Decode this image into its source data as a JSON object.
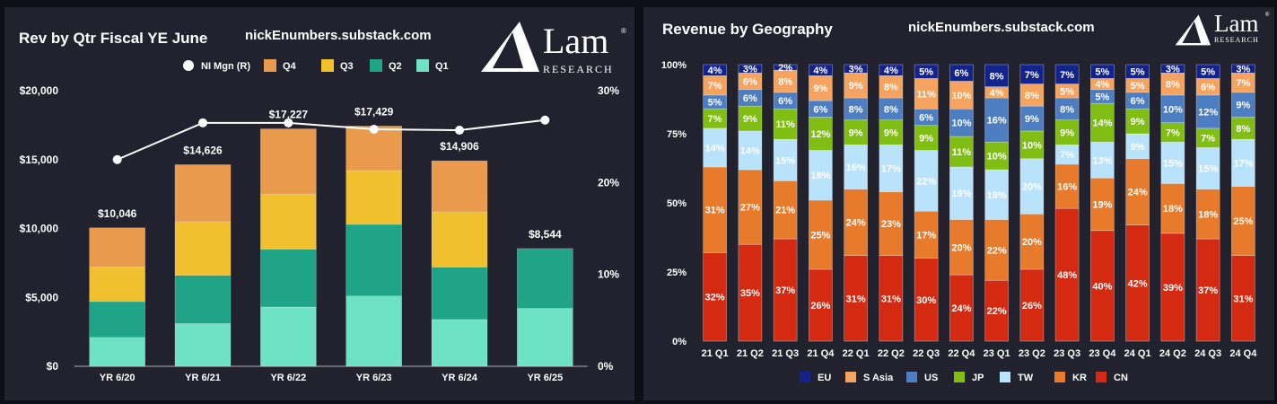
{
  "brand": {
    "name": "Lam",
    "sub": "RESEARCH",
    "reg": "®"
  },
  "site": "nickEnumbers.substack.com",
  "chart_data": [
    {
      "type": "bar",
      "stacked": true,
      "title": "Rev by Qtr Fiscal YE June",
      "categories": [
        "YR 6/20",
        "YR 6/21",
        "YR 6/22",
        "YR 6/23",
        "YR 6/24",
        "YR 6/25"
      ],
      "series": [
        {
          "name": "Q1",
          "color": "#6ee2c4",
          "values": [
            2100,
            3100,
            4300,
            5100,
            3400,
            4200
          ]
        },
        {
          "name": "Q2",
          "color": "#1fa487",
          "values": [
            2600,
            3500,
            4200,
            5200,
            3800,
            4344
          ]
        },
        {
          "name": "Q3",
          "color": "#f0c02f",
          "values": [
            2500,
            3900,
            4000,
            3900,
            4000,
            0
          ]
        },
        {
          "name": "Q4",
          "color": "#e99a4c",
          "values": [
            2846,
            4126,
            4727,
            3229,
            3706,
            0
          ]
        }
      ],
      "totals": [
        "$10,046",
        "$14,626",
        "$17,227",
        "$17,429",
        "$14,906",
        "$8,544"
      ],
      "line": {
        "name": "NI Mgn (R)",
        "color": "#ffffff",
        "values": [
          22.5,
          26.5,
          26.5,
          25.8,
          25.7,
          26.8
        ]
      },
      "legend_order": [
        "NI Mgn (R)",
        "Q4",
        "Q3",
        "Q2",
        "Q1"
      ],
      "ylim": [
        0,
        20000
      ],
      "yticks": [
        "$0",
        "$5,000",
        "$10,000",
        "$15,000",
        "$20,000"
      ],
      "y2lim": [
        0,
        30
      ],
      "y2ticks": [
        "0%",
        "10%",
        "20%",
        "30%"
      ],
      "legend": "top",
      "grid": false
    },
    {
      "type": "bar",
      "stacked": true,
      "percent": true,
      "title": "Revenue by Geography",
      "categories": [
        "21 Q1",
        "21 Q2",
        "21 Q3",
        "21 Q4",
        "22 Q1",
        "22 Q2",
        "22 Q3",
        "22 Q4",
        "23 Q1",
        "23 Q2",
        "23 Q3",
        "23 Q4",
        "24 Q1",
        "24 Q2",
        "24 Q3",
        "24 Q4"
      ],
      "series": [
        {
          "name": "CN",
          "color": "#d42a12",
          "values": [
            32,
            35,
            37,
            26,
            31,
            31,
            30,
            24,
            22,
            26,
            48,
            40,
            42,
            39,
            37,
            31
          ]
        },
        {
          "name": "KR",
          "color": "#e87a2b",
          "values": [
            31,
            27,
            21,
            25,
            24,
            23,
            17,
            20,
            22,
            20,
            16,
            19,
            24,
            18,
            18,
            25
          ]
        },
        {
          "name": "TW",
          "color": "#b9e2fb",
          "values": [
            14,
            14,
            15,
            18,
            16,
            17,
            22,
            19,
            18,
            20,
            7,
            13,
            9,
            15,
            15,
            17
          ]
        },
        {
          "name": "JP",
          "color": "#80be14",
          "values": [
            7,
            9,
            11,
            12,
            9,
            9,
            9,
            11,
            10,
            10,
            9,
            14,
            9,
            7,
            7,
            8
          ]
        },
        {
          "name": "US",
          "color": "#4d7ec2",
          "values": [
            5,
            6,
            6,
            6,
            8,
            8,
            6,
            10,
            16,
            9,
            8,
            5,
            6,
            10,
            12,
            9
          ]
        },
        {
          "name": "S Asia",
          "color": "#f5a35e",
          "values": [
            7,
            6,
            8,
            9,
            9,
            8,
            11,
            10,
            4,
            8,
            5,
            4,
            5,
            8,
            6,
            7
          ]
        },
        {
          "name": "EU",
          "color": "#13238c",
          "values": [
            4,
            3,
            2,
            4,
            3,
            4,
            5,
            6,
            8,
            7,
            7,
            5,
            5,
            3,
            5,
            3
          ]
        }
      ],
      "legend_order": [
        "EU",
        "S Asia",
        "US",
        "JP",
        "TW",
        "KR",
        "CN"
      ],
      "ylim": [
        0,
        100
      ],
      "yticks": [
        "0%",
        "25%",
        "50%",
        "75%",
        "100%"
      ],
      "legend": "bottom",
      "grid": false
    }
  ]
}
